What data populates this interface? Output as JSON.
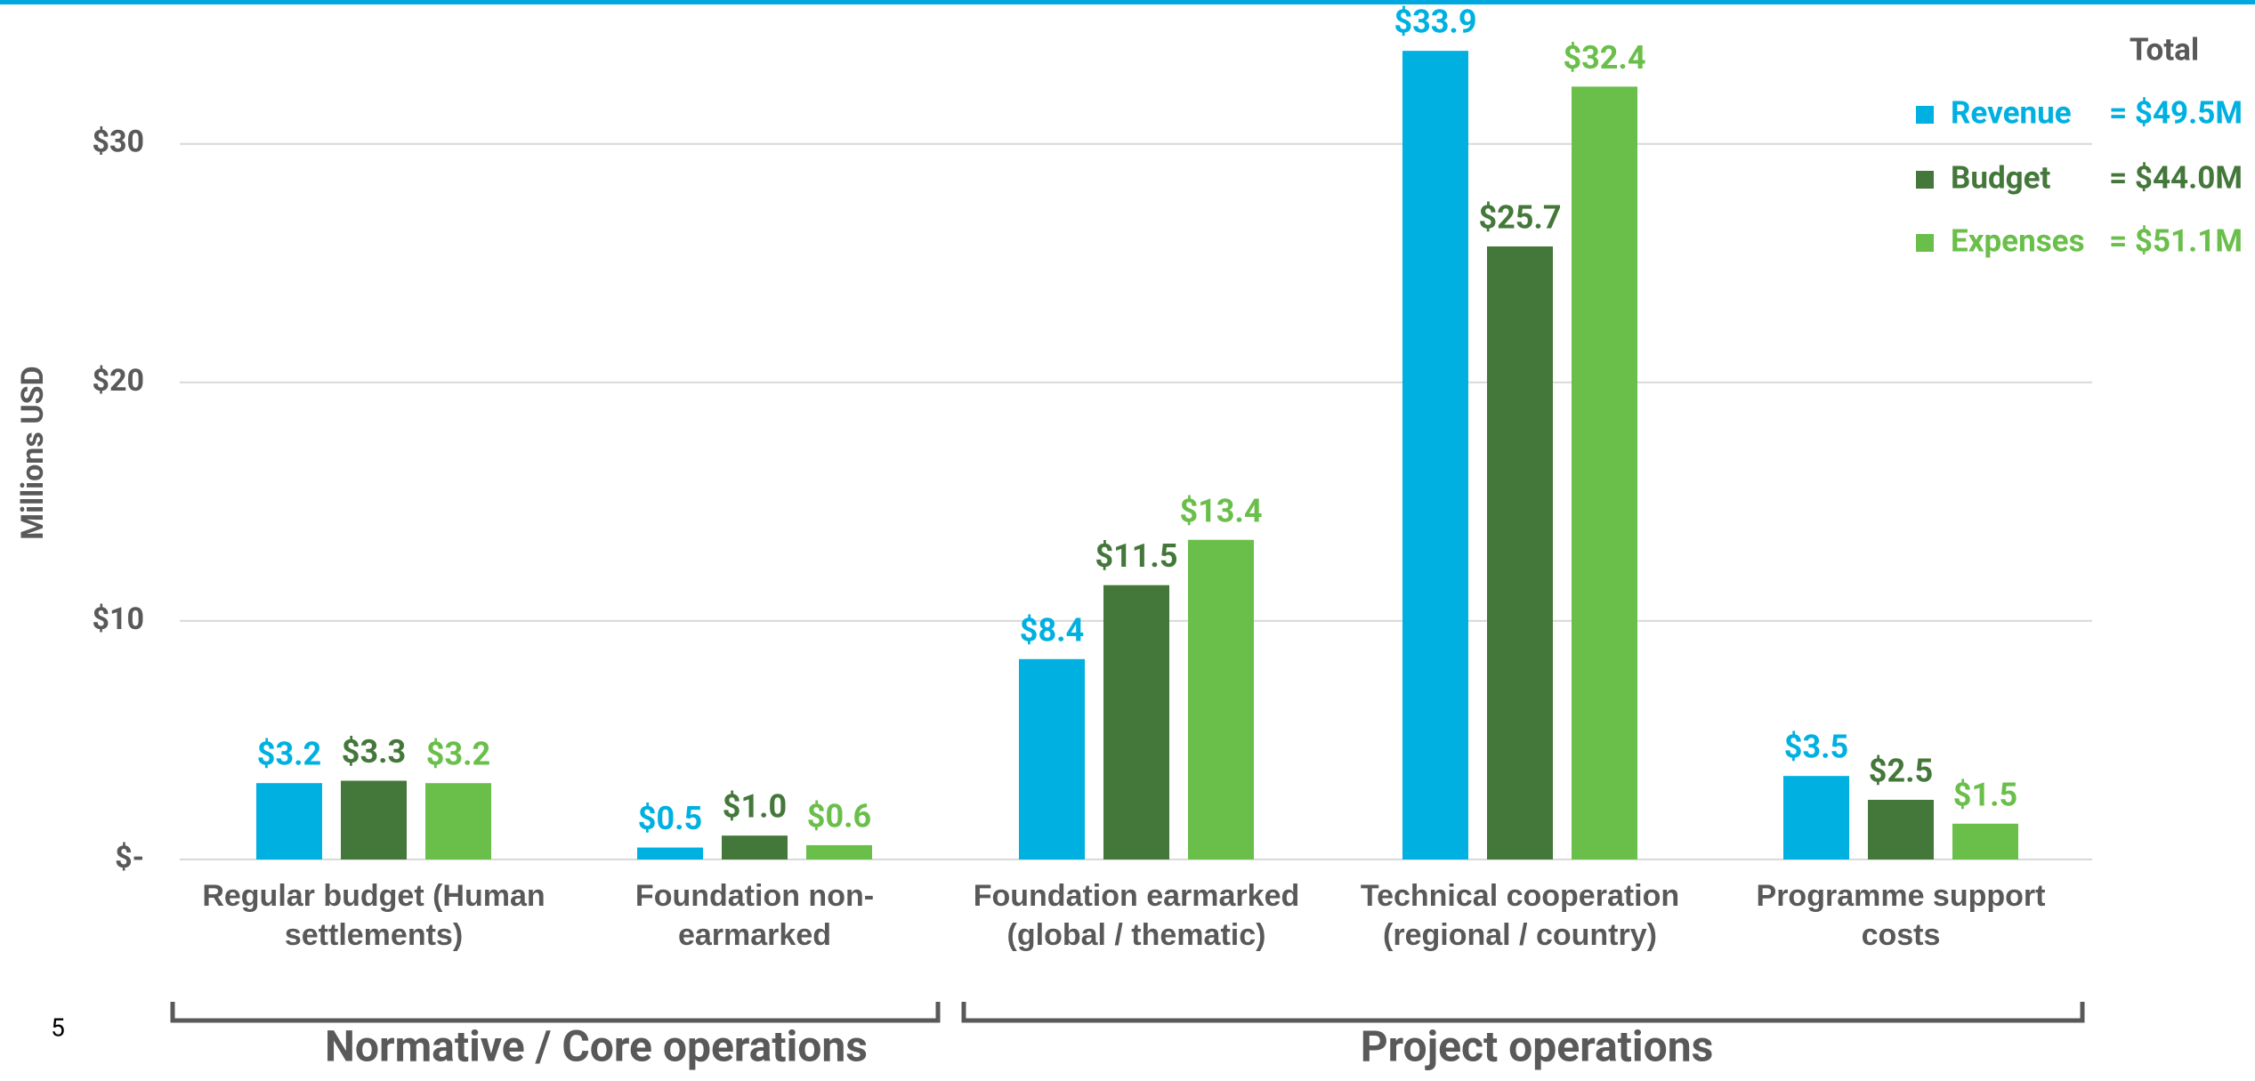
{
  "chart_data": {
    "type": "bar",
    "y_axis_label": "Millions USD",
    "categories": [
      "Regular budget (Human settlements)",
      "Foundation non-earmarked",
      "Foundation earmarked (global / thematic)",
      "Technical cooperation (regional / country)",
      "Programme support costs"
    ],
    "series": [
      {
        "name": "Revenue",
        "color": "#00b0e0",
        "values": [
          3.2,
          0.5,
          8.4,
          33.9,
          3.5
        ],
        "value_labels": [
          "$3.2",
          "$0.5",
          "$8.4",
          "$33.9",
          "$3.5"
        ],
        "total": "= $49.5M"
      },
      {
        "name": "Budget",
        "color": "#44773a",
        "values": [
          3.3,
          1.0,
          11.5,
          25.7,
          2.5
        ],
        "value_labels": [
          "$3.3",
          "$1.0",
          "$11.5",
          "$25.7",
          "$2.5"
        ],
        "total": "= $44.0M"
      },
      {
        "name": "Expenses",
        "color": "#6abf4b",
        "values": [
          3.2,
          0.6,
          13.4,
          32.4,
          1.5
        ],
        "value_labels": [
          "$3.2",
          "$0.6",
          "$13.4",
          "$32.4",
          "$1.5"
        ],
        "total": "= $51.1M"
      }
    ],
    "legend_title": "Total",
    "legend_position": "upper right",
    "groups": [
      "Normative / Core operations",
      "Project operations"
    ],
    "ylim": [
      0,
      34
    ],
    "yticks": [
      {
        "value": 0,
        "label": "$-"
      },
      {
        "value": 10,
        "label": "$10"
      },
      {
        "value": 20,
        "label": "$20"
      },
      {
        "value": 30,
        "label": "$30"
      }
    ],
    "grid": true
  },
  "page_number": "5"
}
